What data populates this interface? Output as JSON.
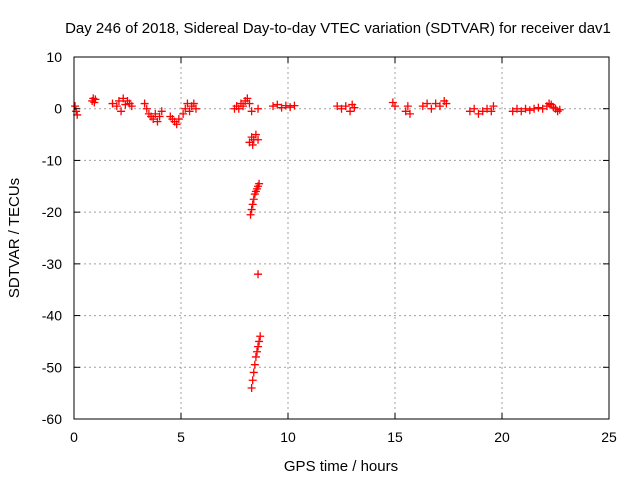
{
  "chart_data": {
    "type": "scatter",
    "title": "Day 246 of 2018, Sidereal Day-to-day VTEC variation (SDTVAR) for receiver dav1",
    "xlabel": "GPS time / hours",
    "ylabel": "SDTVAR / TECUs",
    "xlim": [
      0,
      25
    ],
    "ylim": [
      -60,
      10
    ],
    "xticks": [
      "0",
      "5",
      "10",
      "15",
      "20",
      "25"
    ],
    "yticks": [
      "10",
      "0",
      "-10",
      "-20",
      "-30",
      "-40",
      "-50",
      "-60"
    ],
    "grid": true,
    "marker": "+",
    "color": "#ff0000",
    "series": [
      {
        "name": "dav1",
        "points": [
          [
            0.05,
            0.5
          ],
          [
            0.1,
            -0.5
          ],
          [
            0.15,
            -1.2
          ],
          [
            0.85,
            1.5
          ],
          [
            0.9,
            2.0
          ],
          [
            0.95,
            1.2
          ],
          [
            1.0,
            1.8
          ],
          [
            1.8,
            1.0
          ],
          [
            2.0,
            0.5
          ],
          [
            2.1,
            1.5
          ],
          [
            2.2,
            -0.5
          ],
          [
            2.3,
            2.0
          ],
          [
            2.4,
            0.8
          ],
          [
            2.5,
            1.5
          ],
          [
            2.6,
            1.0
          ],
          [
            2.7,
            0.5
          ],
          [
            3.3,
            1.0
          ],
          [
            3.4,
            0.0
          ],
          [
            3.5,
            -1.0
          ],
          [
            3.6,
            -1.5
          ],
          [
            3.7,
            -2.0
          ],
          [
            3.8,
            -1.0
          ],
          [
            3.9,
            -2.5
          ],
          [
            4.0,
            -1.5
          ],
          [
            4.1,
            -0.5
          ],
          [
            4.5,
            -1.5
          ],
          [
            4.6,
            -2.0
          ],
          [
            4.7,
            -2.5
          ],
          [
            4.8,
            -3.0
          ],
          [
            4.9,
            -2.0
          ],
          [
            5.1,
            -1.0
          ],
          [
            5.2,
            0.0
          ],
          [
            5.3,
            1.0
          ],
          [
            5.4,
            -0.5
          ],
          [
            5.5,
            0.5
          ],
          [
            5.6,
            1.0
          ],
          [
            5.7,
            0.0
          ],
          [
            7.5,
            0.0
          ],
          [
            7.6,
            0.5
          ],
          [
            7.7,
            0.0
          ],
          [
            7.8,
            1.0
          ],
          [
            7.9,
            0.5
          ],
          [
            8.0,
            1.5
          ],
          [
            8.1,
            2.0
          ],
          [
            8.2,
            1.0
          ],
          [
            8.3,
            -0.5
          ],
          [
            8.2,
            -6.5
          ],
          [
            8.3,
            -5.5
          ],
          [
            8.4,
            -6.0
          ],
          [
            8.5,
            -5.0
          ],
          [
            8.6,
            -6.0
          ],
          [
            8.35,
            -7.0
          ],
          [
            8.25,
            -20.5
          ],
          [
            8.3,
            -19.5
          ],
          [
            8.35,
            -18.5
          ],
          [
            8.4,
            -17.5
          ],
          [
            8.45,
            -16.5
          ],
          [
            8.5,
            -16.0
          ],
          [
            8.55,
            -15.5
          ],
          [
            8.6,
            -15.0
          ],
          [
            8.65,
            -14.5
          ],
          [
            8.6,
            -32.0
          ],
          [
            8.3,
            -54.0
          ],
          [
            8.35,
            -52.5
          ],
          [
            8.4,
            -51.0
          ],
          [
            8.45,
            -49.5
          ],
          [
            8.5,
            -48.0
          ],
          [
            8.55,
            -47.0
          ],
          [
            8.6,
            -46.0
          ],
          [
            8.65,
            -45.0
          ],
          [
            8.7,
            -44.0
          ],
          [
            8.6,
            0.0
          ],
          [
            9.3,
            0.5
          ],
          [
            9.5,
            0.8
          ],
          [
            9.7,
            0.2
          ],
          [
            9.9,
            0.6
          ],
          [
            10.1,
            0.3
          ],
          [
            10.3,
            0.6
          ],
          [
            12.3,
            0.5
          ],
          [
            12.5,
            0.0
          ],
          [
            12.7,
            0.5
          ],
          [
            12.9,
            -0.5
          ],
          [
            13.1,
            0.2
          ],
          [
            13.0,
            0.8
          ],
          [
            14.9,
            1.2
          ],
          [
            15.0,
            0.5
          ],
          [
            15.5,
            -0.5
          ],
          [
            15.6,
            0.5
          ],
          [
            15.7,
            -1.0
          ],
          [
            16.3,
            0.5
          ],
          [
            16.5,
            1.0
          ],
          [
            16.7,
            0.0
          ],
          [
            16.9,
            1.0
          ],
          [
            17.1,
            0.5
          ],
          [
            17.3,
            1.5
          ],
          [
            17.4,
            1.0
          ],
          [
            18.5,
            -0.5
          ],
          [
            18.7,
            0.0
          ],
          [
            18.9,
            -1.0
          ],
          [
            19.1,
            -0.5
          ],
          [
            19.3,
            0.0
          ],
          [
            19.5,
            -0.5
          ],
          [
            19.6,
            0.5
          ],
          [
            20.5,
            -0.5
          ],
          [
            20.7,
            0.0
          ],
          [
            20.9,
            -0.5
          ],
          [
            21.1,
            0.0
          ],
          [
            21.3,
            -0.3
          ],
          [
            21.5,
            0.0
          ],
          [
            21.7,
            0.2
          ],
          [
            21.9,
            0.0
          ],
          [
            22.1,
            0.5
          ],
          [
            22.2,
            1.0
          ],
          [
            22.3,
            0.8
          ],
          [
            22.4,
            0.3
          ],
          [
            22.5,
            0.0
          ],
          [
            22.6,
            -0.5
          ],
          [
            22.7,
            -0.2
          ]
        ]
      }
    ]
  }
}
